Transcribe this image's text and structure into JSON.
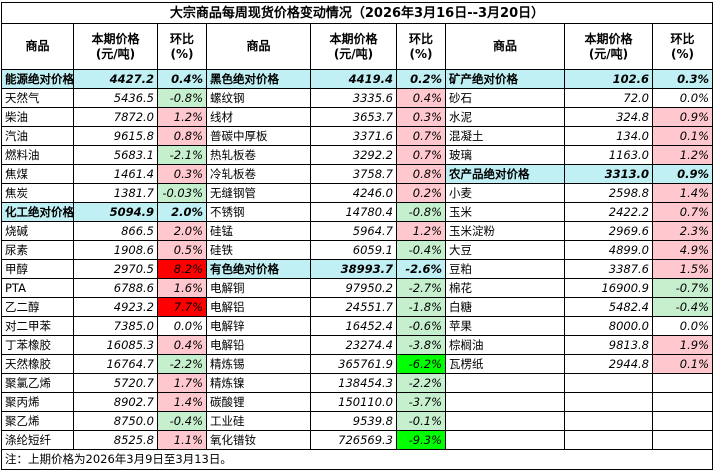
{
  "title": "大宗商品每周现货价格变动情况（2026年3月16日--3月20日）",
  "headers": {
    "name": "商品",
    "price": "本期价格\n(元/吨)",
    "change": "环比\n(%)"
  },
  "colors": {
    "section_bg": "#c0f0f4",
    "rise_bg": "#ffc7ce",
    "fall_bg": "#c6efce",
    "strong_rise_bg": "#ff0000",
    "strong_fall_bg": "#00ff00"
  },
  "rows": [
    [
      {
        "name": "能源绝对价格",
        "price": "4427.2",
        "change": "0.4%",
        "section": true
      },
      {
        "name": "黑色绝对价格",
        "price": "4419.4",
        "change": "0.2%",
        "section": true
      },
      {
        "name": "矿产绝对价格",
        "price": "102.6",
        "change": "0.3%",
        "section": true
      }
    ],
    [
      {
        "name": "天然气",
        "price": "5436.5",
        "change": "-0.8%",
        "style": "neg"
      },
      {
        "name": "螺纹钢",
        "price": "3335.6",
        "change": "0.4%",
        "style": "pos"
      },
      {
        "name": "砂石",
        "price": "72.0",
        "change": "0.0%"
      }
    ],
    [
      {
        "name": "柴油",
        "price": "7872.0",
        "change": "1.2%",
        "style": "pos"
      },
      {
        "name": "线材",
        "price": "3653.7",
        "change": "0.3%",
        "style": "pos"
      },
      {
        "name": "水泥",
        "price": "324.8",
        "change": "0.9%",
        "style": "pos"
      }
    ],
    [
      {
        "name": "汽油",
        "price": "9615.8",
        "change": "0.8%",
        "style": "pos"
      },
      {
        "name": "普碳中厚板",
        "price": "3371.6",
        "change": "0.7%",
        "style": "pos"
      },
      {
        "name": "混凝土",
        "price": "134.0",
        "change": "0.1%",
        "style": "pos"
      }
    ],
    [
      {
        "name": "燃料油",
        "price": "5683.1",
        "change": "-2.1%",
        "style": "neg"
      },
      {
        "name": "热轧板卷",
        "price": "3292.2",
        "change": "0.7%",
        "style": "pos"
      },
      {
        "name": "玻璃",
        "price": "1163.0",
        "change": "1.2%",
        "style": "pos"
      }
    ],
    [
      {
        "name": "焦煤",
        "price": "1461.4",
        "change": "0.3%",
        "style": "pos"
      },
      {
        "name": "冷轧板卷",
        "price": "3758.7",
        "change": "0.8%",
        "style": "pos"
      },
      {
        "name": "农产品绝对价格",
        "price": "3313.0",
        "change": "0.9%",
        "section": true
      }
    ],
    [
      {
        "name": "焦炭",
        "price": "1381.7",
        "change": "-0.03%",
        "style": "neg"
      },
      {
        "name": "无缝钢管",
        "price": "4246.0",
        "change": "0.2%",
        "style": "pos"
      },
      {
        "name": "小麦",
        "price": "2598.8",
        "change": "1.4%",
        "style": "pos"
      }
    ],
    [
      {
        "name": "化工绝对价格",
        "price": "5094.9",
        "change": "2.0%",
        "section": true
      },
      {
        "name": "不锈钢",
        "price": "14780.4",
        "change": "-0.8%",
        "style": "neg"
      },
      {
        "name": "玉米",
        "price": "2422.2",
        "change": "0.7%",
        "style": "pos"
      }
    ],
    [
      {
        "name": "烧碱",
        "price": "866.5",
        "change": "2.0%",
        "style": "pos"
      },
      {
        "name": "硅锰",
        "price": "5964.7",
        "change": "1.2%",
        "style": "pos"
      },
      {
        "name": "玉米淀粉",
        "price": "2969.6",
        "change": "2.3%",
        "style": "pos"
      }
    ],
    [
      {
        "name": "尿素",
        "price": "1908.6",
        "change": "0.5%",
        "style": "pos"
      },
      {
        "name": "硅铁",
        "price": "6059.1",
        "change": "-0.4%",
        "style": "neg"
      },
      {
        "name": "大豆",
        "price": "4899.0",
        "change": "4.9%",
        "style": "pos"
      }
    ],
    [
      {
        "name": "甲醇",
        "price": "2970.5",
        "change": "8.2%",
        "style": "hot"
      },
      {
        "name": "有色绝对价格",
        "price": "38993.7",
        "change": "-2.6%",
        "section": true
      },
      {
        "name": "豆粕",
        "price": "3387.6",
        "change": "1.5%",
        "style": "pos"
      }
    ],
    [
      {
        "name": "PTA",
        "price": "6788.6",
        "change": "1.6%",
        "style": "pos"
      },
      {
        "name": "电解铜",
        "price": "97950.2",
        "change": "-2.7%",
        "style": "neg"
      },
      {
        "name": "棉花",
        "price": "16900.9",
        "change": "-0.7%",
        "style": "neg"
      }
    ],
    [
      {
        "name": "乙二醇",
        "price": "4923.2",
        "change": "7.7%",
        "style": "hot"
      },
      {
        "name": "电解铝",
        "price": "24551.7",
        "change": "-1.8%",
        "style": "neg"
      },
      {
        "name": "白糖",
        "price": "5482.4",
        "change": "-0.4%",
        "style": "neg"
      }
    ],
    [
      {
        "name": "对二甲苯",
        "price": "7385.0",
        "change": "0.0%"
      },
      {
        "name": "电解锌",
        "price": "16452.4",
        "change": "-0.6%",
        "style": "neg"
      },
      {
        "name": "苹果",
        "price": "8000.0",
        "change": "0.0%"
      }
    ],
    [
      {
        "name": "丁苯橡胶",
        "price": "16085.3",
        "change": "0.4%",
        "style": "pos"
      },
      {
        "name": "电解铅",
        "price": "23274.4",
        "change": "-3.8%",
        "style": "neg"
      },
      {
        "name": "棕榈油",
        "price": "9813.8",
        "change": "1.9%",
        "style": "pos"
      }
    ],
    [
      {
        "name": "天然橡胶",
        "price": "16764.7",
        "change": "-2.2%",
        "style": "neg"
      },
      {
        "name": "精炼锡",
        "price": "365761.9",
        "change": "-6.2%",
        "style": "ext"
      },
      {
        "name": "瓦楞纸",
        "price": "2944.8",
        "change": "0.1%",
        "style": "pos"
      }
    ],
    [
      {
        "name": "聚氯乙烯",
        "price": "5720.7",
        "change": "1.7%",
        "style": "pos"
      },
      {
        "name": "精炼镍",
        "price": "138454.3",
        "change": "-2.2%",
        "style": "neg"
      },
      {
        "name": "",
        "price": "",
        "change": ""
      }
    ],
    [
      {
        "name": "聚丙烯",
        "price": "8902.7",
        "change": "1.4%",
        "style": "pos"
      },
      {
        "name": "碳酸锂",
        "price": "150110.0",
        "change": "-3.7%",
        "style": "neg"
      },
      {
        "name": "",
        "price": "",
        "change": ""
      }
    ],
    [
      {
        "name": "聚乙烯",
        "price": "8750.0",
        "change": "-0.4%",
        "style": "neg"
      },
      {
        "name": "工业硅",
        "price": "9539.8",
        "change": "-0.1%",
        "style": "neg"
      },
      {
        "name": "",
        "price": "",
        "change": ""
      }
    ],
    [
      {
        "name": "涤纶短纤",
        "price": "8525.8",
        "change": "1.1%",
        "style": "pos"
      },
      {
        "name": "氧化镨钕",
        "price": "726569.3",
        "change": "-9.3%",
        "style": "ext"
      },
      {
        "name": "",
        "price": "",
        "change": ""
      }
    ]
  ],
  "note": "注：上期价格为2026年3月9日至3月13日。"
}
